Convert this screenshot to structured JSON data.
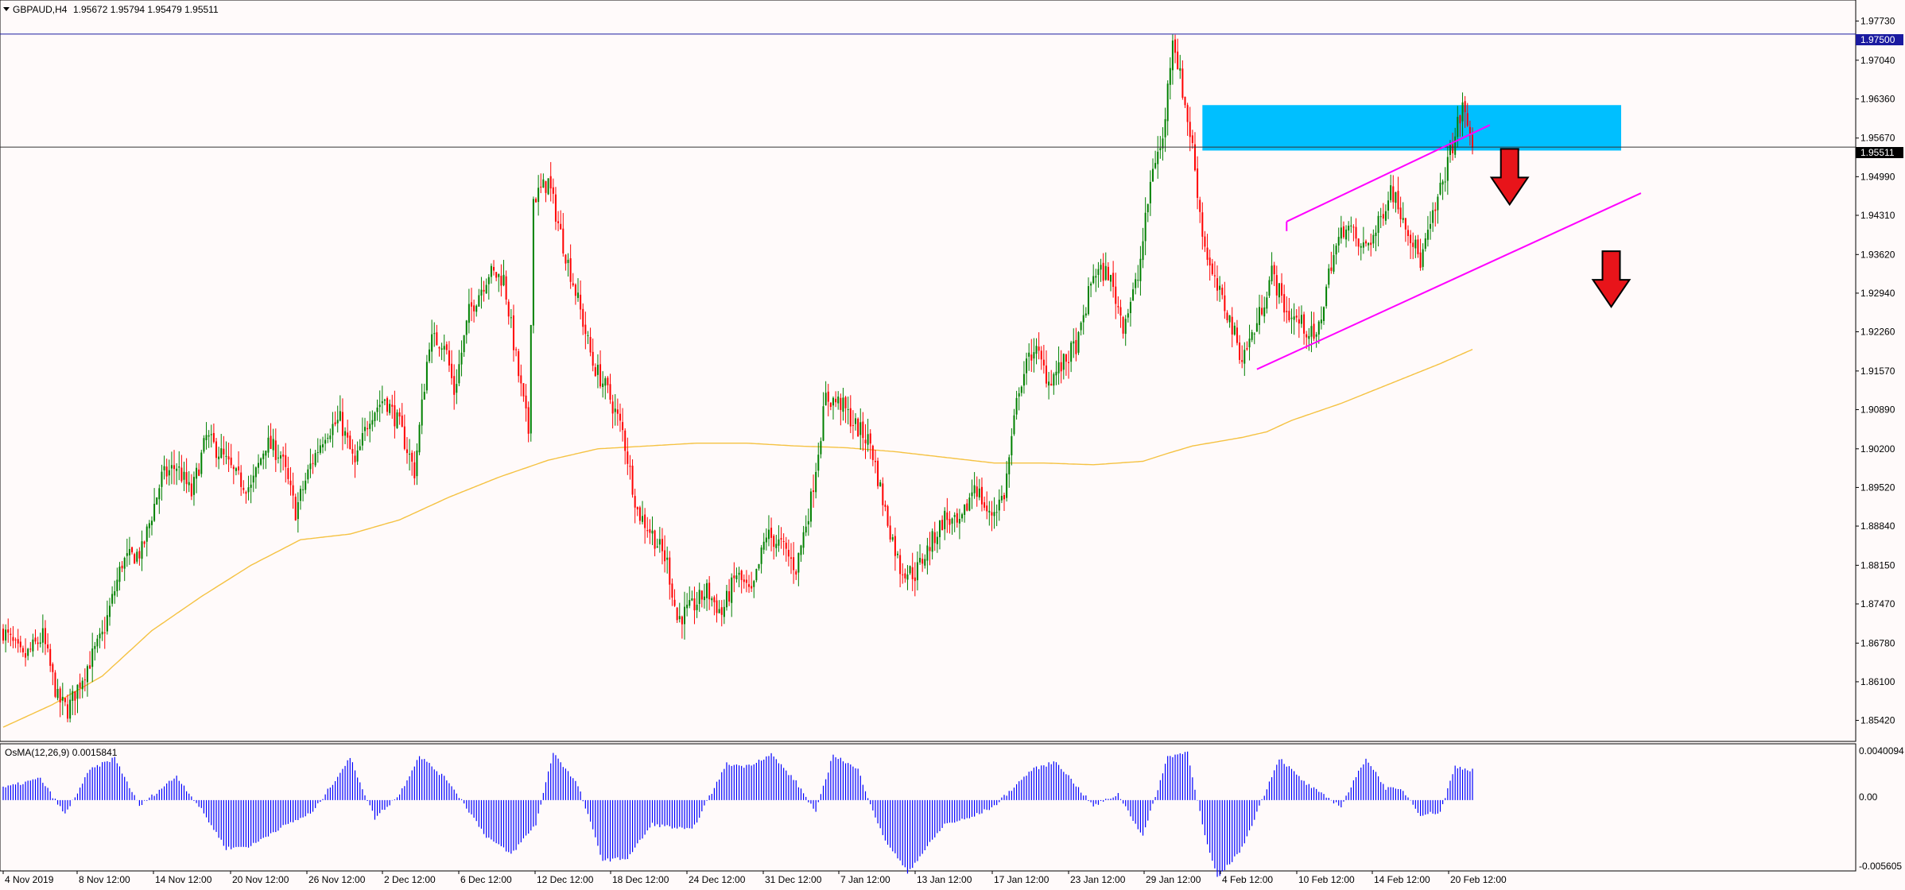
{
  "header": {
    "symbol": "GBPAUD,H4",
    "ohlc": "1.95672 1.95794 1.95479 1.95511"
  },
  "price_levels": {
    "resistance_line": "1.97500",
    "current_price": "1.95511"
  },
  "indicator": {
    "label": "OsMA(12,26,9) 0.0015841",
    "ticks": [
      "0.0040094",
      "0.00",
      "-0.005605"
    ]
  },
  "colors": {
    "background": "#fffafa",
    "bull_candle": "#008000",
    "bear_candle": "#ff0000",
    "ma_line": "#f5c242",
    "zone": "#00bfff",
    "channel": "#ff00ff",
    "arrow": "#e8141a",
    "histogram": "#0000ff",
    "resistance": "#1a1aa0"
  },
  "chart_data": {
    "type": "candlestick",
    "instrument": "GBPAUD",
    "timeframe": "H4",
    "ylim": [
      1.8505,
      1.981
    ],
    "y_ticks": [
      "1.97730",
      "1.97040",
      "1.96360",
      "1.95670",
      "1.94990",
      "1.94310",
      "1.93620",
      "1.92940",
      "1.92260",
      "1.91570",
      "1.90890",
      "1.90200",
      "1.89520",
      "1.88840",
      "1.88150",
      "1.87470",
      "1.86780",
      "1.86100",
      "1.85420"
    ],
    "x_ticks": [
      "4 Nov 2019",
      "8 Nov 12:00",
      "14 Nov 12:00",
      "20 Nov 12:00",
      "26 Nov 12:00",
      "2 Dec 12:00",
      "6 Dec 12:00",
      "12 Dec 12:00",
      "18 Dec 12:00",
      "24 Dec 12:00",
      "31 Dec 12:00",
      "7 Jan 12:00",
      "13 Jan 12:00",
      "17 Jan 12:00",
      "23 Jan 12:00",
      "29 Jan 12:00",
      "4 Feb 12:00",
      "10 Feb 12:00",
      "14 Feb 12:00",
      "20 Feb 12:00"
    ],
    "price_path": [
      [
        0,
        1.87
      ],
      [
        8,
        1.865
      ],
      [
        16,
        1.869
      ],
      [
        22,
        1.858
      ],
      [
        26,
        1.856
      ],
      [
        32,
        1.862
      ],
      [
        40,
        1.869
      ],
      [
        48,
        1.882
      ],
      [
        56,
        1.884
      ],
      [
        64,
        1.897
      ],
      [
        70,
        1.899
      ],
      [
        76,
        1.894
      ],
      [
        82,
        1.904
      ],
      [
        88,
        1.901
      ],
      [
        94,
        1.897
      ],
      [
        100,
        1.895
      ],
      [
        106,
        1.903
      ],
      [
        112,
        1.901
      ],
      [
        118,
        1.891
      ],
      [
        124,
        1.899
      ],
      [
        130,
        1.905
      ],
      [
        136,
        1.907
      ],
      [
        142,
        1.899
      ],
      [
        148,
        1.908
      ],
      [
        154,
        1.911
      ],
      [
        160,
        1.906
      ],
      [
        166,
        1.898
      ],
      [
        172,
        1.921
      ],
      [
        178,
        1.921
      ],
      [
        182,
        1.912
      ],
      [
        188,
        1.926
      ],
      [
        196,
        1.933
      ],
      [
        202,
        1.932
      ],
      [
        208,
        1.915
      ],
      [
        212,
        1.905
      ],
      [
        214,
        1.946
      ],
      [
        220,
        1.949
      ],
      [
        226,
        1.938
      ],
      [
        232,
        1.928
      ],
      [
        238,
        1.917
      ],
      [
        244,
        1.912
      ],
      [
        250,
        1.905
      ],
      [
        256,
        1.891
      ],
      [
        262,
        1.887
      ],
      [
        268,
        1.882
      ],
      [
        272,
        1.872
      ],
      [
        278,
        1.874
      ],
      [
        284,
        1.877
      ],
      [
        290,
        1.873
      ],
      [
        296,
        1.88
      ],
      [
        302,
        1.876
      ],
      [
        308,
        1.887
      ],
      [
        314,
        1.885
      ],
      [
        320,
        1.881
      ],
      [
        326,
        1.893
      ],
      [
        332,
        1.911
      ],
      [
        338,
        1.91
      ],
      [
        344,
        1.906
      ],
      [
        350,
        1.903
      ],
      [
        356,
        1.891
      ],
      [
        362,
        1.881
      ],
      [
        368,
        1.88
      ],
      [
        374,
        1.885
      ],
      [
        380,
        1.89
      ],
      [
        386,
        1.888
      ],
      [
        392,
        1.896
      ],
      [
        398,
        1.89
      ],
      [
        404,
        1.894
      ],
      [
        410,
        1.913
      ],
      [
        416,
        1.92
      ],
      [
        422,
        1.914
      ],
      [
        428,
        1.917
      ],
      [
        434,
        1.921
      ],
      [
        440,
        1.933
      ],
      [
        446,
        1.933
      ],
      [
        452,
        1.924
      ],
      [
        458,
        1.932
      ],
      [
        464,
        1.952
      ],
      [
        468,
        1.956
      ],
      [
        472,
        1.975
      ],
      [
        476,
        1.965
      ],
      [
        480,
        1.955
      ],
      [
        484,
        1.94
      ],
      [
        488,
        1.932
      ],
      [
        494,
        1.926
      ],
      [
        500,
        1.918
      ],
      [
        506,
        1.924
      ],
      [
        512,
        1.933
      ],
      [
        518,
        1.926
      ],
      [
        524,
        1.924
      ],
      [
        530,
        1.921
      ],
      [
        536,
        1.935
      ],
      [
        542,
        1.942
      ],
      [
        548,
        1.937
      ],
      [
        554,
        1.94
      ],
      [
        560,
        1.948
      ],
      [
        566,
        1.942
      ],
      [
        572,
        1.935
      ],
      [
        578,
        1.944
      ],
      [
        584,
        1.954
      ],
      [
        589,
        1.962
      ],
      [
        593,
        1.956
      ]
    ],
    "ma200_path": [
      [
        0,
        1.853
      ],
      [
        20,
        1.857
      ],
      [
        40,
        1.862
      ],
      [
        60,
        1.87
      ],
      [
        80,
        1.876
      ],
      [
        100,
        1.8815
      ],
      [
        120,
        1.886
      ],
      [
        140,
        1.887
      ],
      [
        160,
        1.8895
      ],
      [
        180,
        1.8935
      ],
      [
        200,
        1.897
      ],
      [
        220,
        1.9
      ],
      [
        240,
        1.902
      ],
      [
        260,
        1.9025
      ],
      [
        280,
        1.903
      ],
      [
        300,
        1.903
      ],
      [
        320,
        1.9025
      ],
      [
        340,
        1.9022
      ],
      [
        360,
        1.9015
      ],
      [
        380,
        1.9005
      ],
      [
        400,
        1.8995
      ],
      [
        420,
        1.8995
      ],
      [
        440,
        1.8992
      ],
      [
        460,
        1.8998
      ],
      [
        470,
        1.9012
      ],
      [
        480,
        1.9025
      ],
      [
        500,
        1.904
      ],
      [
        510,
        1.905
      ],
      [
        520,
        1.907
      ],
      [
        540,
        1.91
      ],
      [
        560,
        1.9135
      ],
      [
        580,
        1.917
      ],
      [
        593,
        1.9195
      ]
    ],
    "osma_path": [
      [
        0,
        0.001
      ],
      [
        15,
        0.0018
      ],
      [
        25,
        -0.0012
      ],
      [
        35,
        0.0025
      ],
      [
        45,
        0.0035
      ],
      [
        55,
        -0.0005
      ],
      [
        70,
        0.002
      ],
      [
        80,
        -0.0008
      ],
      [
        90,
        -0.004
      ],
      [
        100,
        -0.0038
      ],
      [
        110,
        -0.0025
      ],
      [
        125,
        -0.001
      ],
      [
        140,
        0.0035
      ],
      [
        150,
        -0.0015
      ],
      [
        160,
        0.0005
      ],
      [
        168,
        0.0037
      ],
      [
        180,
        0.0015
      ],
      [
        195,
        -0.003
      ],
      [
        205,
        -0.0045
      ],
      [
        215,
        -0.002
      ],
      [
        222,
        0.004
      ],
      [
        232,
        0.0012
      ],
      [
        242,
        -0.005
      ],
      [
        252,
        -0.0048
      ],
      [
        262,
        -0.002
      ],
      [
        278,
        -0.0025
      ],
      [
        292,
        0.003
      ],
      [
        300,
        0.0028
      ],
      [
        310,
        0.0038
      ],
      [
        320,
        0.0015
      ],
      [
        328,
        -0.001
      ],
      [
        335,
        0.0038
      ],
      [
        345,
        0.0025
      ],
      [
        355,
        -0.003
      ],
      [
        365,
        -0.006
      ],
      [
        380,
        -0.002
      ],
      [
        390,
        -0.0015
      ],
      [
        400,
        -0.0005
      ],
      [
        415,
        0.0025
      ],
      [
        425,
        0.0032
      ],
      [
        440,
        -0.0005
      ],
      [
        450,
        0.0005
      ],
      [
        460,
        -0.003
      ],
      [
        470,
        0.0036
      ],
      [
        478,
        0.004
      ],
      [
        485,
        -0.003
      ],
      [
        490,
        -0.0065
      ],
      [
        500,
        -0.004
      ],
      [
        515,
        0.0035
      ],
      [
        525,
        0.0015
      ],
      [
        532,
        0.0005
      ],
      [
        540,
        -0.0005
      ],
      [
        550,
        0.0035
      ],
      [
        558,
        0.001
      ],
      [
        565,
        0.0008
      ],
      [
        572,
        -0.0012
      ],
      [
        580,
        -0.001
      ],
      [
        586,
        0.0028
      ],
      [
        590,
        0.0026
      ],
      [
        593,
        0.0025
      ]
    ],
    "annotations": {
      "resistance_zone": {
        "x0": 484,
        "x1": 653,
        "y0": 1.9545,
        "y1": 1.9625
      },
      "channel_upper": {
        "x0": 518,
        "y0": 1.942,
        "x1": 600,
        "y1": 1.959
      },
      "channel_lower": {
        "x0": 506,
        "y0": 1.916,
        "x1": 661,
        "y1": 1.947
      },
      "down_arrows": [
        {
          "x": 608,
          "y": 1.945
        },
        {
          "x": 649,
          "y": 1.927
        }
      ]
    }
  }
}
